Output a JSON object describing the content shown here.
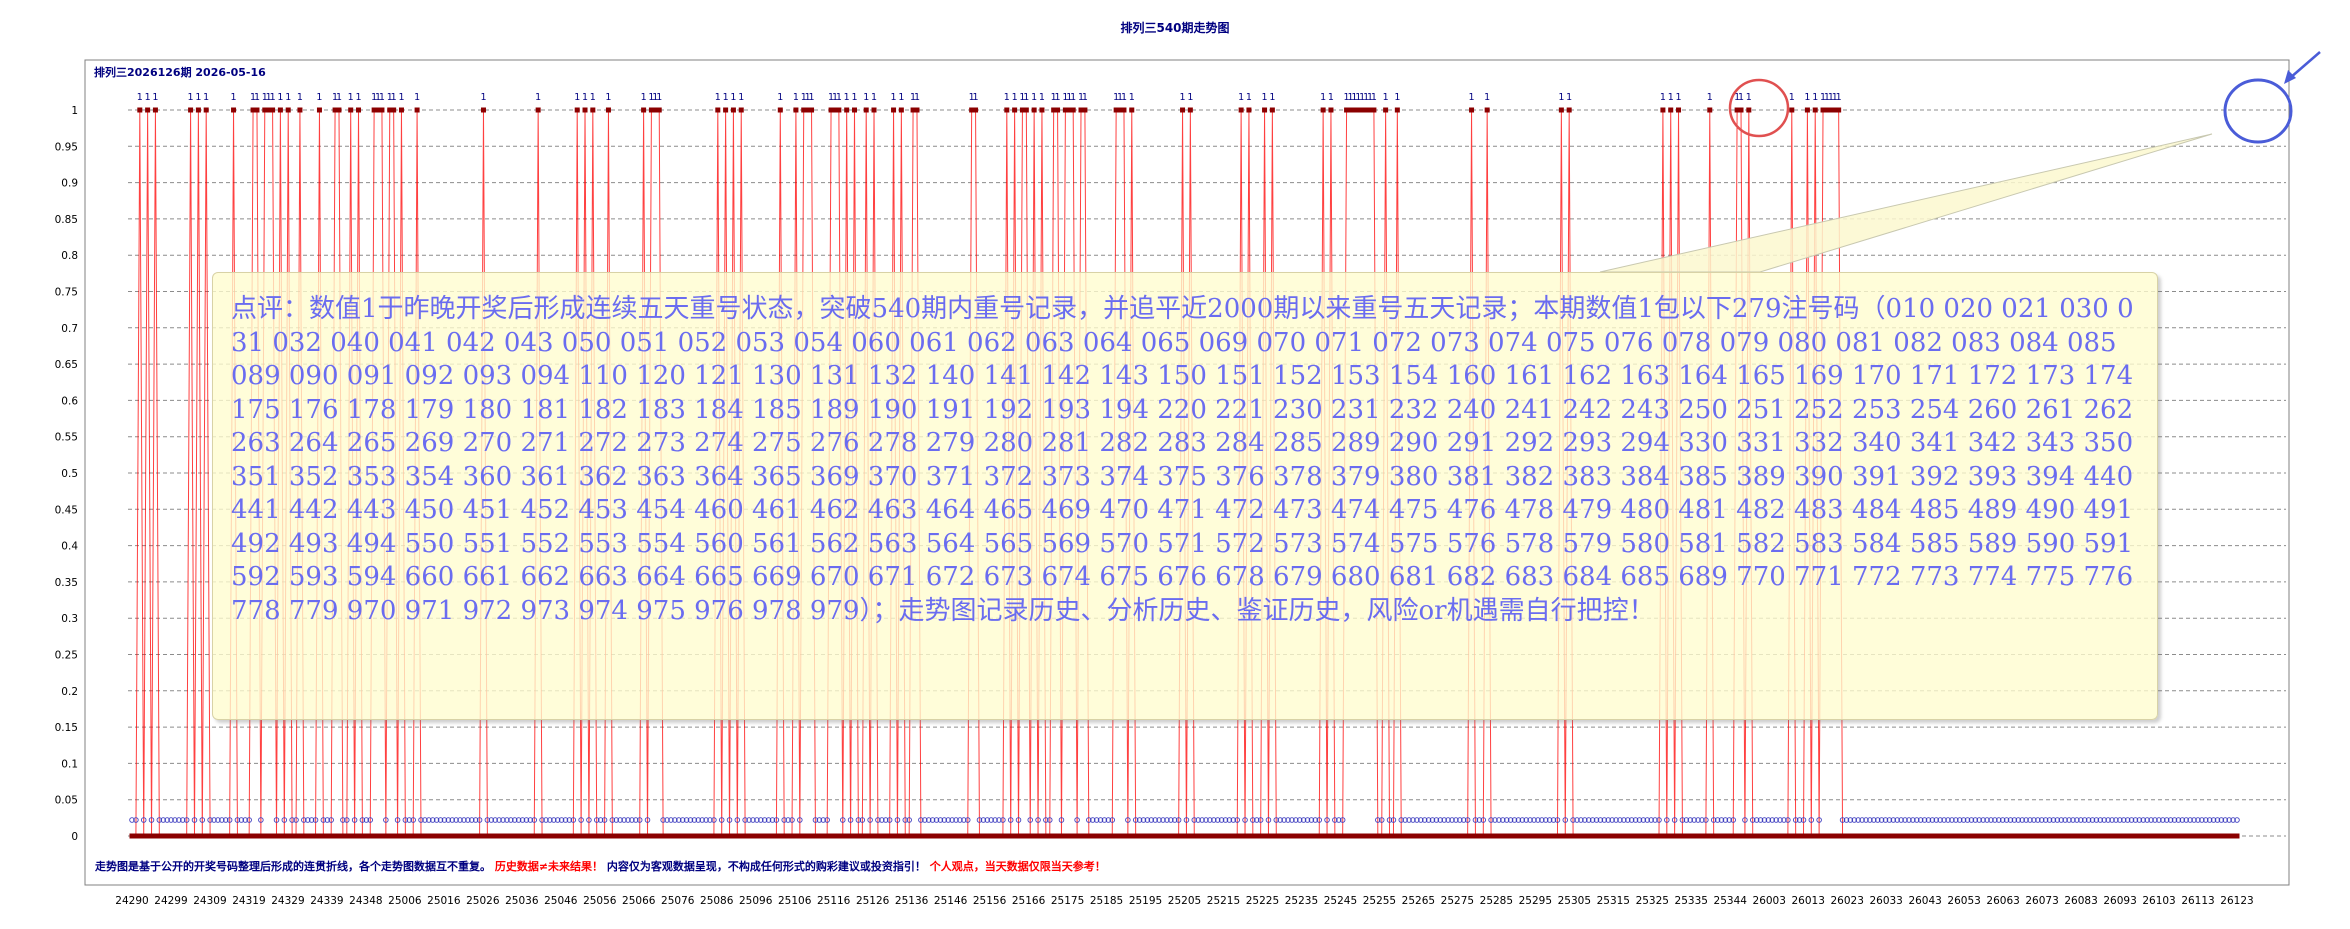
{
  "chart_data": {
    "type": "line",
    "title": "排列三540期走势图",
    "issue_label": "排列三2026126期  2026-05-16",
    "ylim": [
      0,
      1
    ],
    "y_ticks": [
      "0",
      "0.05",
      "0.1",
      "0.15",
      "0.2",
      "0.25",
      "0.3",
      "0.35",
      "0.4",
      "0.45",
      "0.5",
      "0.55",
      "0.6",
      "0.65",
      "0.7",
      "0.75",
      "0.8",
      "0.85",
      "0.9",
      "0.95",
      "1"
    ],
    "x_ticks": [
      "24290",
      "24299",
      "24309",
      "24319",
      "24329",
      "24339",
      "24348",
      "25006",
      "25016",
      "25026",
      "25036",
      "25046",
      "25056",
      "25066",
      "25076",
      "25086",
      "25096",
      "25106",
      "25116",
      "25126",
      "25136",
      "25146",
      "25156",
      "25166",
      "25175",
      "25185",
      "25195",
      "25205",
      "25215",
      "25225",
      "25235",
      "25245",
      "25255",
      "25265",
      "25275",
      "25285",
      "25295",
      "25305",
      "25315",
      "25325",
      "25335",
      "25344",
      "26003",
      "26013",
      "26023",
      "26033",
      "26043",
      "26053",
      "26063",
      "26073",
      "26083",
      "26093",
      "26103",
      "26113",
      "26123"
    ],
    "grid": true,
    "series": [
      {
        "value_label": "1",
        "color": "#ff0000",
        "hits": [
          2,
          4,
          6,
          15,
          17,
          19,
          26,
          31,
          32,
          34,
          35,
          36,
          38,
          40,
          43,
          48,
          52,
          53,
          56,
          58,
          62,
          63,
          64,
          66,
          67,
          69,
          73,
          90,
          104,
          114,
          116,
          118,
          122,
          131,
          133,
          134,
          135,
          150,
          152,
          154,
          156,
          166,
          170,
          172,
          173,
          174,
          179,
          180,
          181,
          183,
          185,
          188,
          190,
          195,
          197,
          200,
          201,
          215,
          216,
          224,
          226,
          228,
          229,
          231,
          233,
          236,
          237,
          239,
          240,
          241,
          243,
          244,
          252,
          253,
          254,
          256,
          269,
          271,
          284,
          286,
          290,
          292,
          305,
          307,
          311,
          312,
          313,
          314,
          315,
          316,
          317,
          318,
          321,
          324,
          343,
          347,
          366,
          368,
          392,
          394,
          396,
          404,
          411,
          412,
          414,
          425,
          429,
          431,
          433,
          434,
          435,
          436,
          437
        ]
      }
    ],
    "annotation": {
      "label": "点评：",
      "text": "数值1于昨晚开奖后形成连续五天重号状态，突破540期内重号记录，并追平近2000期以来重号五天记录；本期数值1包以下279注号码（010 020 021 030 031 032 040 041 042 043 050 051 052 053 054 060 061 062 063 064 065 069 070 071 072 073 074 075 076 078 079 080 081 082 083 084 085 089 090 091 092 093 094 110 120 121 130 131 132 140 141 142 143 150 151 152 153 154 160 161 162 163 164 165 169 170 171 172 173 174 175 176 178 179 180 181 182 183 184 185 189 190 191 192 193 194 220 221 230 231 232 240 241 242 243 250 251 252 253 254 260 261 262 263 264 265 269 270 271 272 273 274 275 276 278 279 280 281 282 283 284 285 289 290 291 292 293 294 330 331 332 340 341 342 343 350 351 352 353 354 360 361 362 363 364 365 369 370 371 372 373 374 375 376 378 379 380 381 382 383 384 385 389 390 391 392 393 394 440 441 442 443 450 451 452 453 454 460 461 462 463 464 465 469 470 471 472 473 474 475 476 478 479 480 481 482 483 484 485 489 490 491 492 493 494 550 551 552 553 554 560 561 562 563 564 565 569 570 571 572 573 574 575 576 578 579 580 581 582 583 584 585 589 590 591 592 593 594 660 661 662 663 664 665 669 670 671 672 673 674 675 676 678 679 680 681 682 683 684 685 689 770 771 772 773 774 775 776 778 779 970 971 972 973 974 975 976 978 979）；走势图记录历史、分析历史、鉴证历史，风险or机遇需自行把控！"
    },
    "footer": {
      "part1": "走势图是基于公开的开奖号码整理后形成的连贯折线，各个走势图数据互不重复。",
      "part2": "历史数据≠未来结果！",
      "part3": "内容仅为客观数据呈现，不构成任何形式的购彩建议或投资指引！",
      "part4": "个人观点，当天数据仅限当天参考！"
    },
    "colors": {
      "title": "#000080",
      "line": "#ff0000",
      "hit_marker": "#8b0000",
      "zero_marker": "#4040c0",
      "annotation_text": "#6a6cf0",
      "highlight_red": "#e05050",
      "highlight_blue": "#4a5cd8"
    }
  }
}
